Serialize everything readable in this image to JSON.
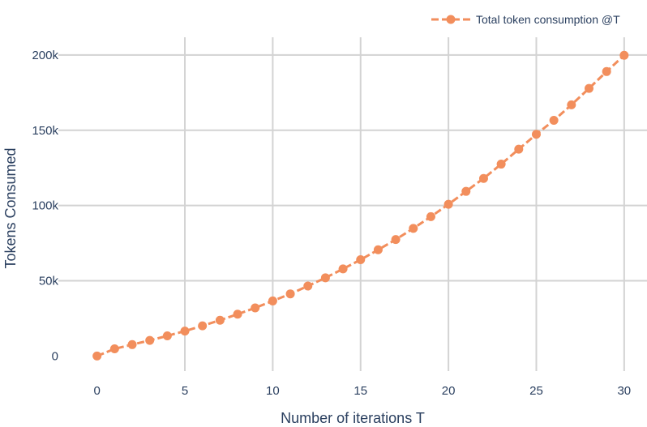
{
  "chart_data": {
    "type": "line",
    "xlabel": "Number of iterations T",
    "ylabel": "Tokens Consumed",
    "xlim": [
      -2.2,
      31.3
    ],
    "ylim": [
      -10000,
      215000
    ],
    "x_ticks": [
      0,
      5,
      10,
      15,
      20,
      25,
      30
    ],
    "x_tick_labels": [
      "0",
      "5",
      "10",
      "15",
      "20",
      "25",
      "30"
    ],
    "y_ticks": [
      0,
      50000,
      100000,
      150000,
      200000
    ],
    "y_tick_labels": [
      "0",
      "50k",
      "100k",
      "150k",
      "200k"
    ],
    "grid": true,
    "legend_position": "top-right",
    "series": [
      {
        "name": "Total token consumption @T",
        "color": "#f28e5c",
        "x": [
          0,
          1,
          2,
          3,
          4,
          5,
          6,
          7,
          8,
          9,
          10,
          11,
          12,
          13,
          14,
          15,
          16,
          17,
          18,
          19,
          20,
          21,
          22,
          23,
          24,
          25,
          26,
          27,
          28,
          29,
          30
        ],
        "values": [
          0,
          4800,
          7600,
          10400,
          13400,
          16600,
          20100,
          23800,
          27800,
          32000,
          36600,
          41300,
          46500,
          52000,
          57900,
          64000,
          70600,
          77400,
          84800,
          92600,
          100800,
          109400,
          118000,
          127500,
          137400,
          147300,
          156600,
          166900,
          177800,
          189000,
          199800
        ]
      }
    ]
  }
}
